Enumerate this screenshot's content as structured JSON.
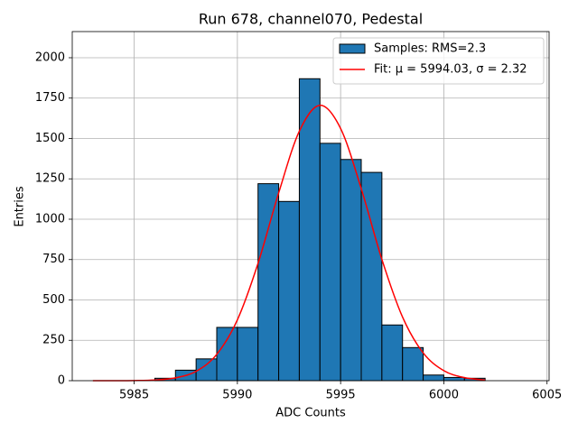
{
  "chart_data": {
    "type": "histogram",
    "title": "Run 678, channel070, Pedestal",
    "xlabel": "ADC Counts",
    "ylabel": "Entries",
    "series": [
      {
        "name": "Samples: RMS=2.3",
        "type": "histogram",
        "color": "#1f77b4",
        "bins": [
          5986,
          5987,
          5988,
          5989,
          5990,
          5991,
          5992,
          5993,
          5994,
          5995,
          5996,
          5997,
          5998,
          5999,
          6000,
          6001,
          6002
        ],
        "values": [
          15,
          65,
          135,
          330,
          330,
          1220,
          1110,
          1870,
          1470,
          1370,
          1290,
          345,
          205,
          35,
          20,
          15
        ]
      },
      {
        "name": "Fit: μ = 5994.03, σ = 2.32",
        "type": "line",
        "color": "#ff0000",
        "x": [
          5983,
          5984,
          5985,
          5986,
          5987,
          5988,
          5989,
          5990,
          5991,
          5992,
          5993,
          5994,
          5995,
          5996,
          5997,
          5998,
          5999,
          6000,
          6001,
          6002
        ],
        "values": [
          0.02,
          0.15,
          0.87,
          4.3,
          17.3,
          58,
          163,
          377,
          727,
          1163,
          1545,
          1705,
          1562,
          1189,
          751,
          394,
          172,
          62,
          18.7,
          4.7
        ]
      }
    ],
    "xlim": [
      5982,
      6005.1
    ],
    "ylim": [
      0,
      2162
    ],
    "xticks": [
      5985,
      5990,
      5995,
      6000,
      6005
    ],
    "yticks": [
      0,
      250,
      500,
      750,
      1000,
      1250,
      1500,
      1750,
      2000
    ],
    "grid": true,
    "legend": "upper right"
  }
}
